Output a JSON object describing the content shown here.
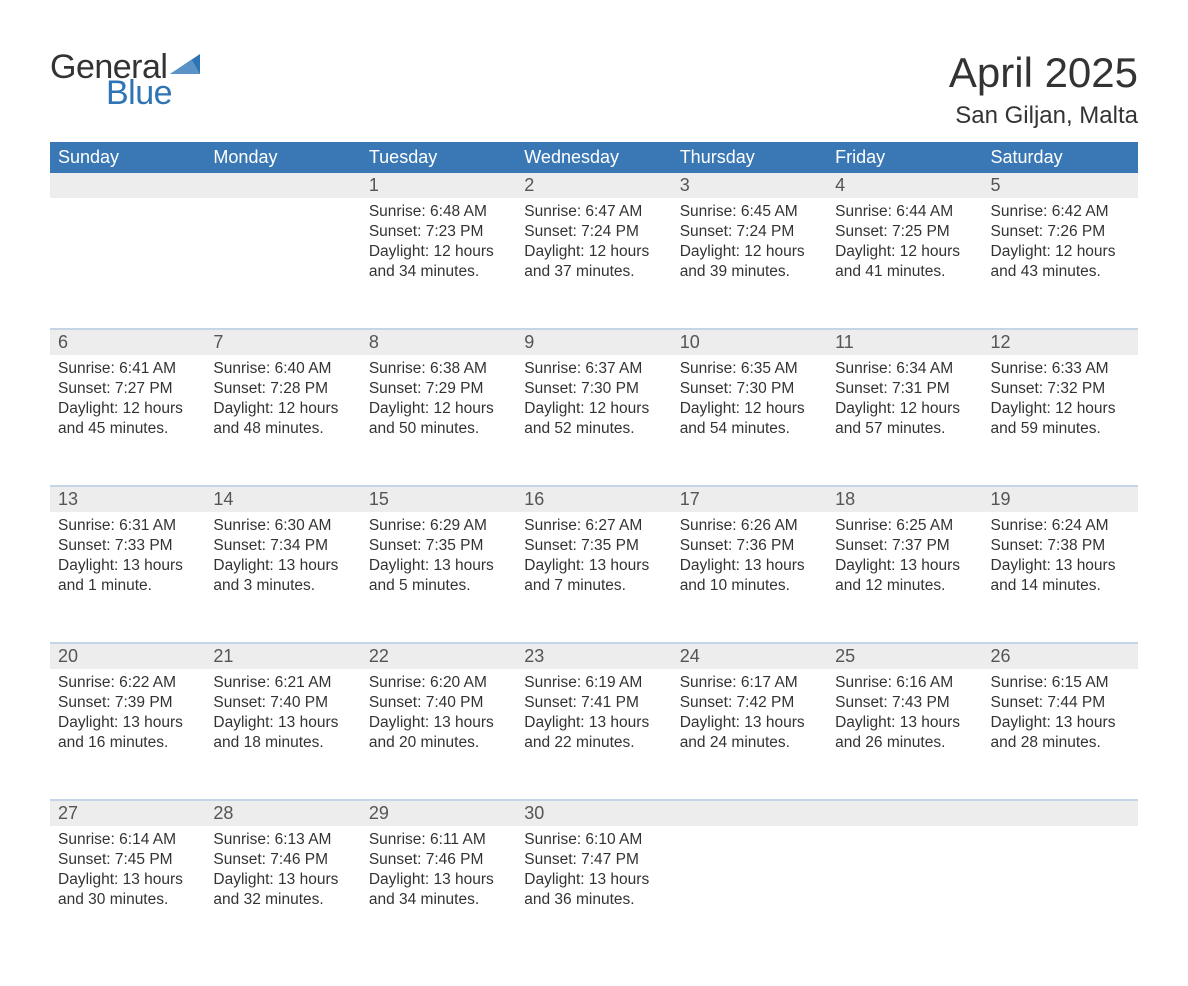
{
  "logo": {
    "word1": "General",
    "word2": "Blue",
    "text_color": "#333333",
    "blue_color": "#2f75b5",
    "flag_color": "#2f75b5"
  },
  "title": "April 2025",
  "location": "San Giljan, Malta",
  "colors": {
    "header_bg": "#3a78b5",
    "header_text": "#ffffff",
    "daynum_bg": "#ededed",
    "daynum_text": "#555555",
    "body_text": "#333333",
    "week_separator": "#c4d5e8",
    "page_bg": "#ffffff"
  },
  "fonts": {
    "title_size_pt": 32,
    "location_size_pt": 18,
    "weekday_size_pt": 14,
    "daynum_size_pt": 14,
    "body_size_pt": 12
  },
  "weekdays": [
    "Sunday",
    "Monday",
    "Tuesday",
    "Wednesday",
    "Thursday",
    "Friday",
    "Saturday"
  ],
  "labels": {
    "sunrise": "Sunrise",
    "sunset": "Sunset",
    "daylight": "Daylight"
  },
  "weeks": [
    [
      null,
      null,
      {
        "n": "1",
        "sunrise": "6:48 AM",
        "sunset": "7:23 PM",
        "daylight": "12 hours and 34 minutes."
      },
      {
        "n": "2",
        "sunrise": "6:47 AM",
        "sunset": "7:24 PM",
        "daylight": "12 hours and 37 minutes."
      },
      {
        "n": "3",
        "sunrise": "6:45 AM",
        "sunset": "7:24 PM",
        "daylight": "12 hours and 39 minutes."
      },
      {
        "n": "4",
        "sunrise": "6:44 AM",
        "sunset": "7:25 PM",
        "daylight": "12 hours and 41 minutes."
      },
      {
        "n": "5",
        "sunrise": "6:42 AM",
        "sunset": "7:26 PM",
        "daylight": "12 hours and 43 minutes."
      }
    ],
    [
      {
        "n": "6",
        "sunrise": "6:41 AM",
        "sunset": "7:27 PM",
        "daylight": "12 hours and 45 minutes."
      },
      {
        "n": "7",
        "sunrise": "6:40 AM",
        "sunset": "7:28 PM",
        "daylight": "12 hours and 48 minutes."
      },
      {
        "n": "8",
        "sunrise": "6:38 AM",
        "sunset": "7:29 PM",
        "daylight": "12 hours and 50 minutes."
      },
      {
        "n": "9",
        "sunrise": "6:37 AM",
        "sunset": "7:30 PM",
        "daylight": "12 hours and 52 minutes."
      },
      {
        "n": "10",
        "sunrise": "6:35 AM",
        "sunset": "7:30 PM",
        "daylight": "12 hours and 54 minutes."
      },
      {
        "n": "11",
        "sunrise": "6:34 AM",
        "sunset": "7:31 PM",
        "daylight": "12 hours and 57 minutes."
      },
      {
        "n": "12",
        "sunrise": "6:33 AM",
        "sunset": "7:32 PM",
        "daylight": "12 hours and 59 minutes."
      }
    ],
    [
      {
        "n": "13",
        "sunrise": "6:31 AM",
        "sunset": "7:33 PM",
        "daylight": "13 hours and 1 minute."
      },
      {
        "n": "14",
        "sunrise": "6:30 AM",
        "sunset": "7:34 PM",
        "daylight": "13 hours and 3 minutes."
      },
      {
        "n": "15",
        "sunrise": "6:29 AM",
        "sunset": "7:35 PM",
        "daylight": "13 hours and 5 minutes."
      },
      {
        "n": "16",
        "sunrise": "6:27 AM",
        "sunset": "7:35 PM",
        "daylight": "13 hours and 7 minutes."
      },
      {
        "n": "17",
        "sunrise": "6:26 AM",
        "sunset": "7:36 PM",
        "daylight": "13 hours and 10 minutes."
      },
      {
        "n": "18",
        "sunrise": "6:25 AM",
        "sunset": "7:37 PM",
        "daylight": "13 hours and 12 minutes."
      },
      {
        "n": "19",
        "sunrise": "6:24 AM",
        "sunset": "7:38 PM",
        "daylight": "13 hours and 14 minutes."
      }
    ],
    [
      {
        "n": "20",
        "sunrise": "6:22 AM",
        "sunset": "7:39 PM",
        "daylight": "13 hours and 16 minutes."
      },
      {
        "n": "21",
        "sunrise": "6:21 AM",
        "sunset": "7:40 PM",
        "daylight": "13 hours and 18 minutes."
      },
      {
        "n": "22",
        "sunrise": "6:20 AM",
        "sunset": "7:40 PM",
        "daylight": "13 hours and 20 minutes."
      },
      {
        "n": "23",
        "sunrise": "6:19 AM",
        "sunset": "7:41 PM",
        "daylight": "13 hours and 22 minutes."
      },
      {
        "n": "24",
        "sunrise": "6:17 AM",
        "sunset": "7:42 PM",
        "daylight": "13 hours and 24 minutes."
      },
      {
        "n": "25",
        "sunrise": "6:16 AM",
        "sunset": "7:43 PM",
        "daylight": "13 hours and 26 minutes."
      },
      {
        "n": "26",
        "sunrise": "6:15 AM",
        "sunset": "7:44 PM",
        "daylight": "13 hours and 28 minutes."
      }
    ],
    [
      {
        "n": "27",
        "sunrise": "6:14 AM",
        "sunset": "7:45 PM",
        "daylight": "13 hours and 30 minutes."
      },
      {
        "n": "28",
        "sunrise": "6:13 AM",
        "sunset": "7:46 PM",
        "daylight": "13 hours and 32 minutes."
      },
      {
        "n": "29",
        "sunrise": "6:11 AM",
        "sunset": "7:46 PM",
        "daylight": "13 hours and 34 minutes."
      },
      {
        "n": "30",
        "sunrise": "6:10 AM",
        "sunset": "7:47 PM",
        "daylight": "13 hours and 36 minutes."
      },
      null,
      null,
      null
    ]
  ]
}
